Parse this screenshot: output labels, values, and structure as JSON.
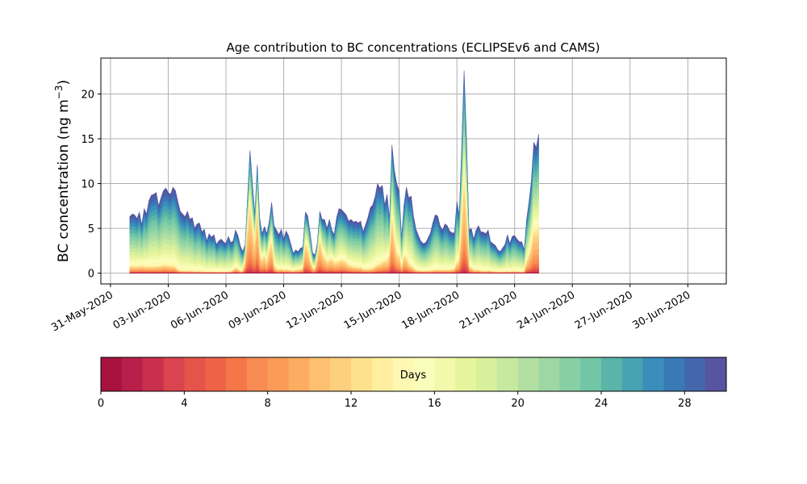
{
  "chart_data": {
    "type": "area",
    "stacked": true,
    "title": "Age contribution to BC concentrations (ECLIPSEv6 and CAMS)",
    "xlabel": "",
    "ylabel": "BC concentration (ng m",
    "ylabel_superscript": "−3",
    "ylabel_suffix": ")",
    "ylim": [
      -1.2,
      24.0
    ],
    "xlim_days_from_31May": [
      -0.5,
      32.0
    ],
    "grid": true,
    "x_start_label": "01-Jun-2020",
    "x_step_hours": 3,
    "x_ticks": [
      {
        "day": 0,
        "label": "31-May-2020"
      },
      {
        "day": 3,
        "label": "03-Jun-2020"
      },
      {
        "day": 6,
        "label": "06-Jun-2020"
      },
      {
        "day": 9,
        "label": "09-Jun-2020"
      },
      {
        "day": 12,
        "label": "12-Jun-2020"
      },
      {
        "day": 15,
        "label": "15-Jun-2020"
      },
      {
        "day": 18,
        "label": "18-Jun-2020"
      },
      {
        "day": 21,
        "label": "21-Jun-2020"
      },
      {
        "day": 24,
        "label": "24-Jun-2020"
      },
      {
        "day": 27,
        "label": "27-Jun-2020"
      },
      {
        "day": 30,
        "label": "30-Jun-2020"
      }
    ],
    "y_ticks": [
      {
        "value": 0,
        "label": "0"
      },
      {
        "value": 5,
        "label": "5"
      },
      {
        "value": 10,
        "label": "10"
      },
      {
        "value": 15,
        "label": "15"
      },
      {
        "value": 20,
        "label": "20"
      }
    ],
    "total_concentration": [
      6.3,
      6.6,
      6.5,
      6.1,
      6.8,
      5.4,
      7.2,
      6.6,
      8.1,
      8.7,
      8.8,
      9.0,
      7.5,
      8.4,
      9.2,
      9.5,
      9.0,
      8.8,
      9.6,
      9.2,
      8.0,
      6.9,
      6.6,
      6.3,
      6.9,
      6.0,
      6.2,
      5.0,
      5.5,
      5.6,
      4.6,
      4.9,
      3.6,
      4.4,
      4.0,
      4.3,
      3.2,
      3.6,
      3.8,
      3.5,
      3.3,
      4.1,
      3.4,
      3.6,
      4.8,
      4.2,
      3.0,
      2.4,
      3.2,
      8.5,
      13.7,
      10.0,
      6.5,
      12.1,
      6.2,
      4.4,
      5.2,
      4.4,
      5.8,
      7.9,
      5.3,
      4.8,
      4.3,
      4.9,
      3.8,
      4.7,
      4.2,
      3.2,
      2.2,
      2.6,
      2.4,
      2.8,
      2.9,
      6.8,
      6.4,
      4.5,
      2.3,
      2.0,
      3.4,
      6.9,
      6.0,
      6.0,
      5.0,
      6.0,
      4.8,
      4.3,
      6.2,
      7.2,
      7.1,
      6.8,
      6.5,
      5.8,
      6.0,
      5.7,
      5.8,
      5.6,
      5.8,
      4.6,
      5.4,
      6.2,
      7.3,
      7.6,
      8.5,
      10.0,
      9.5,
      9.8,
      7.6,
      8.8,
      6.0,
      14.3,
      11.5,
      10.0,
      9.2,
      3.9,
      7.6,
      9.6,
      8.4,
      8.6,
      6.3,
      4.9,
      4.2,
      3.6,
      3.3,
      3.4,
      3.9,
      4.5,
      5.6,
      6.5,
      6.4,
      5.3,
      4.8,
      5.5,
      5.3,
      4.7,
      4.5,
      4.5,
      8.0,
      6.5,
      14.0,
      22.6,
      15.0,
      4.8,
      5.0,
      3.8,
      4.8,
      5.3,
      4.6,
      4.6,
      4.4,
      4.8,
      3.5,
      3.3,
      3.1,
      2.6,
      2.4,
      2.8,
      3.2,
      4.3,
      3.3,
      4.1,
      4.2,
      3.8,
      3.5,
      3.5,
      2.6,
      6.0,
      8.0,
      10.5,
      14.6,
      14.0,
      15.5
    ],
    "fresh_fraction": [
      0.25,
      0.24,
      0.24,
      0.24,
      0.24,
      0.3,
      0.22,
      0.23,
      0.19,
      0.18,
      0.18,
      0.18,
      0.22,
      0.2,
      0.21,
      0.2,
      0.2,
      0.19,
      0.18,
      0.16,
      0.1,
      0.08,
      0.08,
      0.08,
      0.08,
      0.08,
      0.08,
      0.08,
      0.08,
      0.08,
      0.08,
      0.08,
      0.08,
      0.08,
      0.08,
      0.08,
      0.08,
      0.08,
      0.08,
      0.08,
      0.09,
      0.09,
      0.12,
      0.2,
      0.25,
      0.22,
      0.15,
      0.2,
      0.6,
      0.78,
      0.75,
      0.7,
      0.7,
      0.78,
      0.55,
      0.55,
      0.6,
      0.45,
      0.7,
      0.65,
      0.3,
      0.2,
      0.18,
      0.2,
      0.18,
      0.18,
      0.18,
      0.2,
      0.24,
      0.28,
      0.3,
      0.3,
      0.35,
      0.7,
      0.65,
      0.55,
      0.45,
      0.45,
      0.75,
      0.75,
      0.6,
      0.5,
      0.45,
      0.45,
      0.55,
      0.48,
      0.38,
      0.35,
      0.4,
      0.38,
      0.35,
      0.3,
      0.28,
      0.25,
      0.25,
      0.22,
      0.24,
      0.2,
      0.18,
      0.15,
      0.14,
      0.15,
      0.18,
      0.2,
      0.22,
      0.25,
      0.35,
      0.3,
      0.55,
      0.65,
      0.55,
      0.4,
      0.4,
      0.3,
      0.45,
      0.35,
      0.25,
      0.2,
      0.18,
      0.15,
      0.15,
      0.15,
      0.15,
      0.15,
      0.14,
      0.13,
      0.12,
      0.12,
      0.12,
      0.14,
      0.15,
      0.14,
      0.14,
      0.16,
      0.18,
      0.2,
      0.3,
      0.4,
      0.6,
      0.68,
      0.65,
      0.3,
      0.25,
      0.2,
      0.15,
      0.14,
      0.12,
      0.12,
      0.1,
      0.12,
      0.14,
      0.12,
      0.12,
      0.15,
      0.14,
      0.12,
      0.1,
      0.1,
      0.1,
      0.1,
      0.1,
      0.1,
      0.1,
      0.1,
      0.12,
      0.4,
      0.45,
      0.5,
      0.55,
      0.55,
      0.55
    ]
  },
  "colorbar": {
    "label": "Days",
    "range": [
      0,
      30
    ],
    "bins": 30,
    "ticks": [
      {
        "value": 0,
        "label": "0"
      },
      {
        "value": 4,
        "label": "4"
      },
      {
        "value": 8,
        "label": "8"
      },
      {
        "value": 12,
        "label": "12"
      },
      {
        "value": 16,
        "label": "16"
      },
      {
        "value": 20,
        "label": "20"
      },
      {
        "value": 24,
        "label": "24"
      },
      {
        "value": 28,
        "label": "28"
      }
    ],
    "colors": [
      "#a8123f",
      "#b81f48",
      "#c9304b",
      "#d9444e",
      "#e55349",
      "#ee6347",
      "#f57747",
      "#f88c52",
      "#fa9b58",
      "#fdad62",
      "#fdc070",
      "#fecf7f",
      "#fee18c",
      "#ffee9f",
      "#fff8b2",
      "#fbfdba",
      "#f2f9ab",
      "#e6f59d",
      "#d8ef9b",
      "#c6e99f",
      "#b2e0a2",
      "#9dd7a4",
      "#87cfa4",
      "#72c5a5",
      "#5ab4a8",
      "#47a2b1",
      "#3a8ebb",
      "#3979b5",
      "#4566ab",
      "#5954a1"
    ]
  }
}
